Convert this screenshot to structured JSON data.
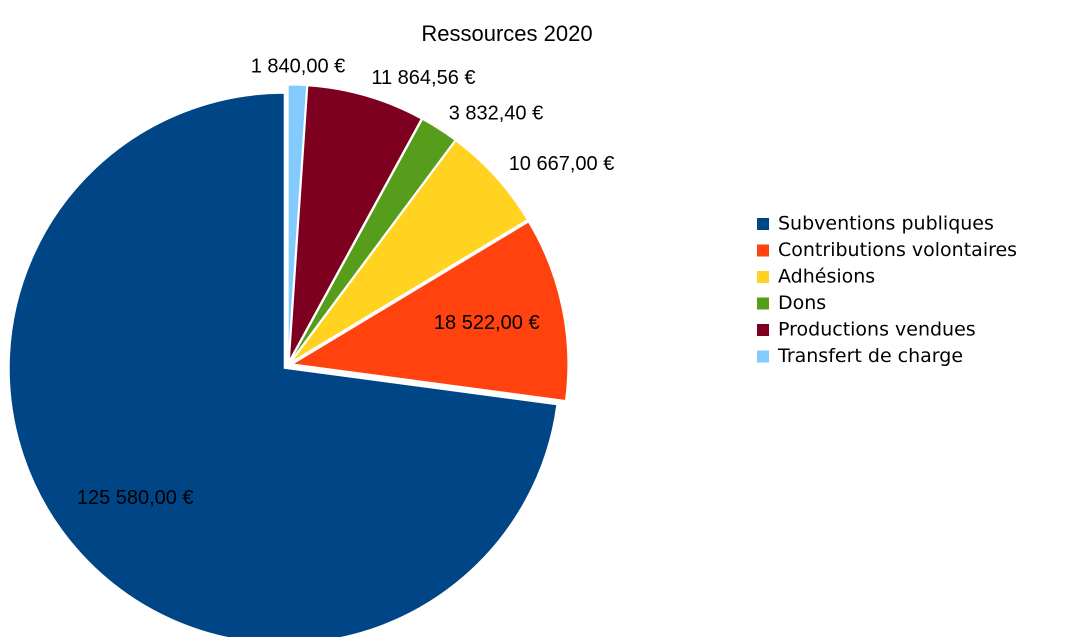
{
  "chart_data": {
    "type": "pie",
    "title": "Ressources 2020",
    "categories": [
      "Subventions publiques",
      "Contributions volontaires",
      "Adhésions",
      "Dons",
      "Productions vendues",
      "Transfert de charge"
    ],
    "values": [
      125580,
      18522,
      10667,
      3832.4,
      11864.56,
      1840
    ],
    "value_labels": [
      "125 580,00 €",
      "18 522,00 €",
      "10 667,00 €",
      "3 832,40 €",
      "11 864,56 €",
      "1 840,00 €"
    ],
    "colors": [
      "#004586",
      "#ff420e",
      "#ffd320",
      "#579d1c",
      "#7e0021",
      "#83caff"
    ],
    "legend": "right"
  }
}
